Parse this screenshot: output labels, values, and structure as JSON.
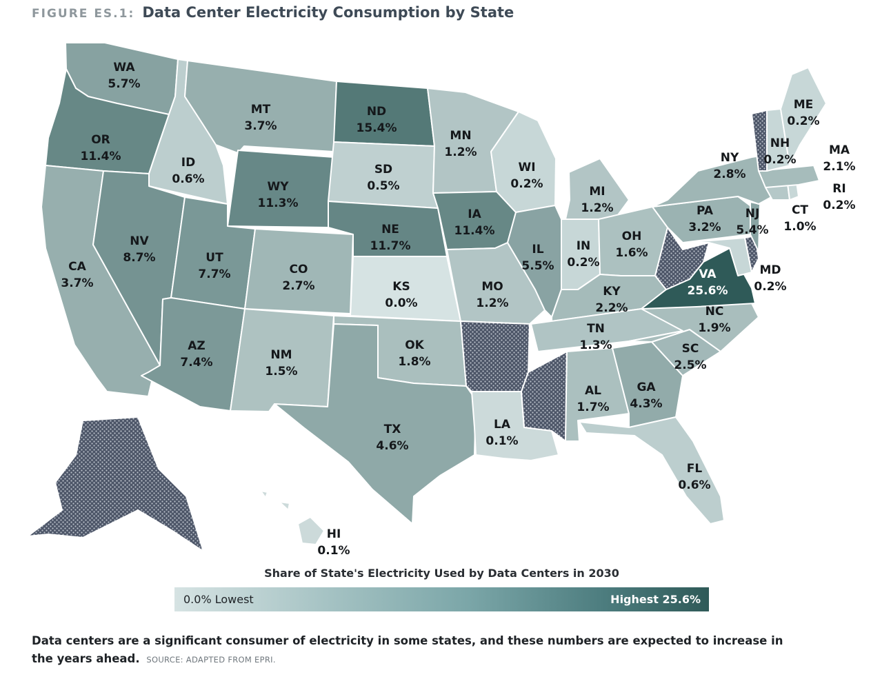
{
  "figure": {
    "label": "FIGURE ES.1:",
    "title": "Data Center Electricity Consumption by State"
  },
  "legend": {
    "title": "Share of State's Electricity Used by Data Centers in 2030",
    "low_label": "0.0% Lowest",
    "high_label": "Highest 25.6%",
    "min": 0.0,
    "max": 25.6,
    "color_low": "#d6e3e3",
    "color_high": "#2f5a58",
    "no_data_pattern": "dotted-hatch"
  },
  "caption": {
    "text": "Data centers are a significant consumer of electricity in some states, and these numbers are expected to increase in the years ahead.",
    "source": "SOURCE: ADAPTED FROM EPRI."
  },
  "states": [
    {
      "abbr": "WA",
      "value": "5.7%",
      "share": 5.7
    },
    {
      "abbr": "OR",
      "value": "11.4%",
      "share": 11.4
    },
    {
      "abbr": "CA",
      "value": "3.7%",
      "share": 3.7
    },
    {
      "abbr": "ID",
      "value": "0.6%",
      "share": 0.6
    },
    {
      "abbr": "NV",
      "value": "8.7%",
      "share": 8.7
    },
    {
      "abbr": "MT",
      "value": "3.7%",
      "share": 3.7
    },
    {
      "abbr": "WY",
      "value": "11.3%",
      "share": 11.3
    },
    {
      "abbr": "UT",
      "value": "7.7%",
      "share": 7.7
    },
    {
      "abbr": "AZ",
      "value": "7.4%",
      "share": 7.4
    },
    {
      "abbr": "CO",
      "value": "2.7%",
      "share": 2.7
    },
    {
      "abbr": "NM",
      "value": "1.5%",
      "share": 1.5
    },
    {
      "abbr": "ND",
      "value": "15.4%",
      "share": 15.4
    },
    {
      "abbr": "SD",
      "value": "0.5%",
      "share": 0.5
    },
    {
      "abbr": "NE",
      "value": "11.7%",
      "share": 11.7
    },
    {
      "abbr": "KS",
      "value": "0.0%",
      "share": 0.0
    },
    {
      "abbr": "OK",
      "value": "1.8%",
      "share": 1.8
    },
    {
      "abbr": "TX",
      "value": "4.6%",
      "share": 4.6
    },
    {
      "abbr": "MN",
      "value": "1.2%",
      "share": 1.2
    },
    {
      "abbr": "IA",
      "value": "11.4%",
      "share": 11.4
    },
    {
      "abbr": "MO",
      "value": "1.2%",
      "share": 1.2
    },
    {
      "abbr": "LA",
      "value": "0.1%",
      "share": 0.1
    },
    {
      "abbr": "WI",
      "value": "0.2%",
      "share": 0.2
    },
    {
      "abbr": "IL",
      "value": "5.5%",
      "share": 5.5
    },
    {
      "abbr": "MI",
      "value": "1.2%",
      "share": 1.2
    },
    {
      "abbr": "IN",
      "value": "0.2%",
      "share": 0.2
    },
    {
      "abbr": "OH",
      "value": "1.6%",
      "share": 1.6
    },
    {
      "abbr": "KY",
      "value": "2.2%",
      "share": 2.2
    },
    {
      "abbr": "TN",
      "value": "1.3%",
      "share": 1.3
    },
    {
      "abbr": "AL",
      "value": "1.7%",
      "share": 1.7
    },
    {
      "abbr": "GA",
      "value": "4.3%",
      "share": 4.3
    },
    {
      "abbr": "FL",
      "value": "0.6%",
      "share": 0.6
    },
    {
      "abbr": "SC",
      "value": "2.5%",
      "share": 2.5
    },
    {
      "abbr": "NC",
      "value": "1.9%",
      "share": 1.9
    },
    {
      "abbr": "VA",
      "value": "25.6%",
      "share": 25.6
    },
    {
      "abbr": "MD",
      "value": "0.2%",
      "share": 0.2
    },
    {
      "abbr": "PA",
      "value": "3.2%",
      "share": 3.2
    },
    {
      "abbr": "NJ",
      "value": "5.4%",
      "share": 5.4
    },
    {
      "abbr": "NY",
      "value": "2.8%",
      "share": 2.8
    },
    {
      "abbr": "CT",
      "value": "1.0%",
      "share": 1.0
    },
    {
      "abbr": "RI",
      "value": "0.2%",
      "share": 0.2
    },
    {
      "abbr": "MA",
      "value": "2.1%",
      "share": 2.1
    },
    {
      "abbr": "NH",
      "value": "0.2%",
      "share": 0.2
    },
    {
      "abbr": "ME",
      "value": "0.2%",
      "share": 0.2
    },
    {
      "abbr": "HI",
      "value": "0.1%",
      "share": 0.1
    }
  ],
  "no_data_states": [
    "AK",
    "AR",
    "MS",
    "WV",
    "VT",
    "DE"
  ]
}
